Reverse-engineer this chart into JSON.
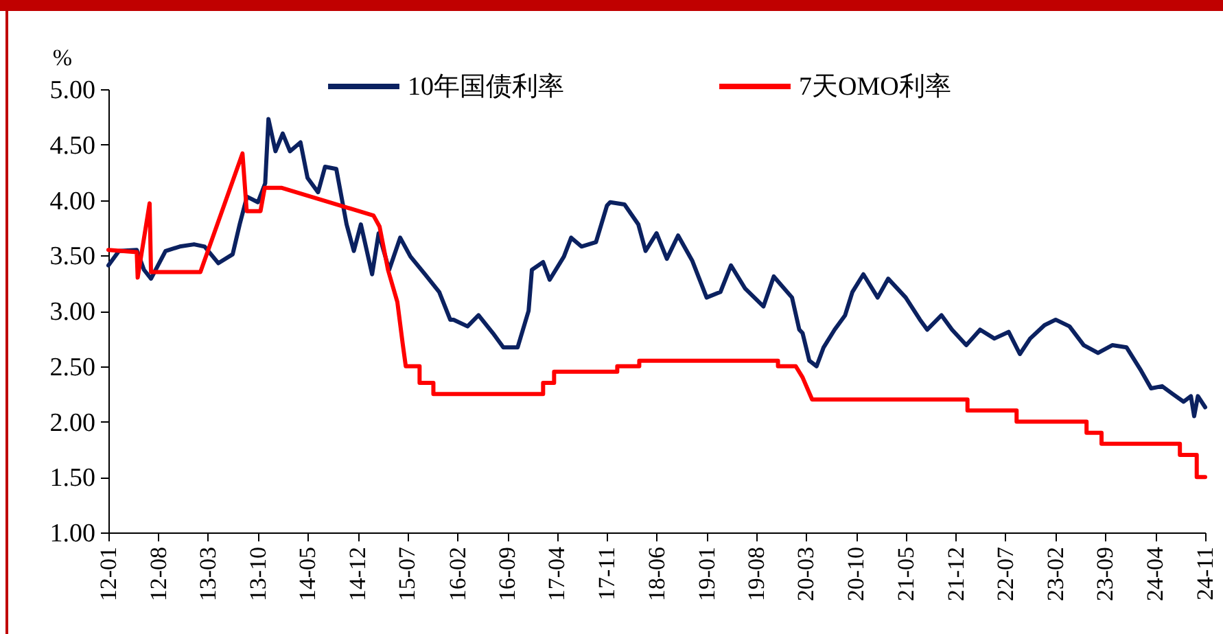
{
  "chart_data": {
    "type": "line",
    "ylabel": "%",
    "legend": "top",
    "xlim": [
      "2012-01-01",
      "2024-11-01"
    ],
    "xticks": [
      {
        "value": "2012-01-01",
        "label": "12-01"
      },
      {
        "value": "2012-08-01",
        "label": "12-08"
      },
      {
        "value": "2013-03-01",
        "label": "13-03"
      },
      {
        "value": "2013-10-01",
        "label": "13-10"
      },
      {
        "value": "2014-05-01",
        "label": "14-05"
      },
      {
        "value": "2014-12-01",
        "label": "14-12"
      },
      {
        "value": "2015-07-01",
        "label": "15-07"
      },
      {
        "value": "2016-02-01",
        "label": "16-02"
      },
      {
        "value": "2016-09-01",
        "label": "16-09"
      },
      {
        "value": "2017-04-01",
        "label": "17-04"
      },
      {
        "value": "2017-11-01",
        "label": "17-11"
      },
      {
        "value": "2018-06-01",
        "label": "18-06"
      },
      {
        "value": "2019-01-01",
        "label": "19-01"
      },
      {
        "value": "2019-08-01",
        "label": "19-08"
      },
      {
        "value": "2020-03-01",
        "label": "20-03"
      },
      {
        "value": "2020-10-01",
        "label": "20-10"
      },
      {
        "value": "2021-05-01",
        "label": "21-05"
      },
      {
        "value": "2021-12-01",
        "label": "21-12"
      },
      {
        "value": "2022-07-01",
        "label": "22-07"
      },
      {
        "value": "2023-02-01",
        "label": "23-02"
      },
      {
        "value": "2023-09-01",
        "label": "23-09"
      },
      {
        "value": "2024-04-01",
        "label": "24-04"
      },
      {
        "value": "2024-11-01",
        "label": "24-11"
      }
    ],
    "ylim": [
      1,
      5
    ],
    "yticks": [
      {
        "value": 1,
        "label": "1.00"
      },
      {
        "value": 1.5,
        "label": "1.50"
      },
      {
        "value": 2,
        "label": "2.00"
      },
      {
        "value": 2.5,
        "label": "2.50"
      },
      {
        "value": 3,
        "label": "3.00"
      },
      {
        "value": 3.5,
        "label": "3.50"
      },
      {
        "value": 4,
        "label": "4.00"
      },
      {
        "value": 4.5,
        "label": "4.50"
      },
      {
        "value": 5,
        "label": "5.00"
      }
    ],
    "series": [
      {
        "name": "10年国债利率",
        "color": "#0b2160",
        "x": [
          "2012-01-01",
          "2012-02-15",
          "2012-05-01",
          "2012-06-01",
          "2012-07-01",
          "2012-09-01",
          "2012-11-01",
          "2013-01-01",
          "2013-02-15",
          "2013-04-15",
          "2013-06-15",
          "2013-07-15",
          "2013-08-15",
          "2013-10-01",
          "2013-11-01",
          "2013-11-15",
          "2013-12-15",
          "2014-01-15",
          "2014-02-15",
          "2014-04-01",
          "2014-05-01",
          "2014-06-15",
          "2014-07-15",
          "2014-09-01",
          "2014-10-15",
          "2014-11-15",
          "2014-12-15",
          "2015-02-01",
          "2015-03-01",
          "2015-04-15",
          "2015-06-01",
          "2015-07-15",
          "2015-09-15",
          "2015-11-15",
          "2016-01-01",
          "2016-01-15",
          "2016-03-15",
          "2016-05-01",
          "2016-07-01",
          "2016-08-15",
          "2016-10-15",
          "2016-12-01",
          "2016-12-15",
          "2017-02-01",
          "2017-03-01",
          "2017-05-01",
          "2017-06-01",
          "2017-07-15",
          "2017-09-15",
          "2017-11-01",
          "2017-11-15",
          "2018-01-15",
          "2018-03-15",
          "2018-04-15",
          "2018-06-01",
          "2018-07-15",
          "2018-09-01",
          "2018-11-01",
          "2019-01-01",
          "2019-03-01",
          "2019-04-15",
          "2019-06-15",
          "2019-09-01",
          "2019-10-15",
          "2020-01-01",
          "2020-02-01",
          "2020-02-15",
          "2020-03-15",
          "2020-04-15",
          "2020-05-15",
          "2020-07-01",
          "2020-08-15",
          "2020-09-15",
          "2020-11-01",
          "2021-01-01",
          "2021-02-15",
          "2021-05-01",
          "2021-07-01",
          "2021-08-01",
          "2021-10-01",
          "2021-11-15",
          "2022-01-15",
          "2022-03-15",
          "2022-05-15",
          "2022-07-15",
          "2022-09-01",
          "2022-10-15",
          "2022-12-15",
          "2023-02-01",
          "2023-04-01",
          "2023-06-01",
          "2023-08-01",
          "2023-10-01",
          "2023-12-01",
          "2024-02-01",
          "2024-03-15",
          "2024-05-01",
          "2024-06-15",
          "2024-08-01",
          "2024-09-01",
          "2024-09-15",
          "2024-10-01",
          "2024-11-01"
        ],
        "values": [
          3.41,
          3.54,
          3.55,
          3.37,
          3.29,
          3.54,
          3.58,
          3.6,
          3.58,
          3.43,
          3.51,
          3.78,
          4.03,
          3.98,
          4.15,
          4.73,
          4.44,
          4.6,
          4.44,
          4.52,
          4.2,
          4.07,
          4.3,
          4.28,
          3.78,
          3.54,
          3.78,
          3.33,
          3.7,
          3.37,
          3.66,
          3.49,
          3.33,
          3.17,
          2.92,
          2.92,
          2.86,
          2.96,
          2.8,
          2.67,
          2.67,
          3.0,
          3.37,
          3.44,
          3.28,
          3.49,
          3.66,
          3.58,
          3.62,
          3.95,
          3.98,
          3.96,
          3.78,
          3.54,
          3.7,
          3.47,
          3.68,
          3.45,
          3.12,
          3.17,
          3.41,
          3.2,
          3.04,
          3.31,
          3.12,
          2.83,
          2.8,
          2.55,
          2.5,
          2.67,
          2.83,
          2.96,
          3.17,
          3.33,
          3.12,
          3.29,
          3.12,
          2.92,
          2.83,
          2.96,
          2.83,
          2.69,
          2.83,
          2.75,
          2.81,
          2.61,
          2.75,
          2.87,
          2.92,
          2.86,
          2.69,
          2.62,
          2.69,
          2.67,
          2.46,
          2.3,
          2.32,
          2.25,
          2.18,
          2.23,
          2.05,
          2.23,
          2.13
        ]
      },
      {
        "name": "7天OMO利率",
        "color": "#ff0000",
        "x": [
          "2012-01-01",
          "2012-05-01",
          "2012-05-05",
          "2012-06-25",
          "2012-07-01",
          "2013-01-28",
          "2013-07-27",
          "2013-08-14",
          "2013-10-12",
          "2013-10-30",
          "2014-01-09",
          "2015-02-07",
          "2015-03-05",
          "2015-04-10",
          "2015-05-20",
          "2015-06-12",
          "2015-06-25",
          "2015-08-23",
          "2015-08-23",
          "2015-10-21",
          "2015-10-21",
          "2017-02-01",
          "2017-02-01",
          "2017-03-20",
          "2017-03-20",
          "2017-12-15",
          "2017-12-15",
          "2018-03-19",
          "2018-03-19",
          "2019-11-02",
          "2019-11-02",
          "2020-01-17",
          "2020-02-15",
          "2020-03-27",
          "2022-01-20",
          "2022-01-20",
          "2022-08-18",
          "2022-08-18",
          "2023-06-13",
          "2023-06-13",
          "2023-08-16",
          "2023-08-16",
          "2024-07-16",
          "2024-07-16",
          "2024-09-26",
          "2024-09-26",
          "2024-11-01"
        ],
        "values": [
          3.55,
          3.53,
          3.3,
          3.97,
          3.35,
          3.35,
          4.42,
          3.9,
          3.9,
          4.11,
          4.11,
          3.86,
          3.76,
          3.37,
          3.08,
          2.7,
          2.5,
          2.5,
          2.35,
          2.35,
          2.25,
          2.25,
          2.35,
          2.35,
          2.45,
          2.45,
          2.5,
          2.5,
          2.55,
          2.55,
          2.5,
          2.5,
          2.4,
          2.2,
          2.2,
          2.1,
          2.1,
          2.0,
          2.0,
          1.9,
          1.9,
          1.8,
          1.8,
          1.7,
          1.7,
          1.5,
          1.5
        ]
      }
    ]
  }
}
